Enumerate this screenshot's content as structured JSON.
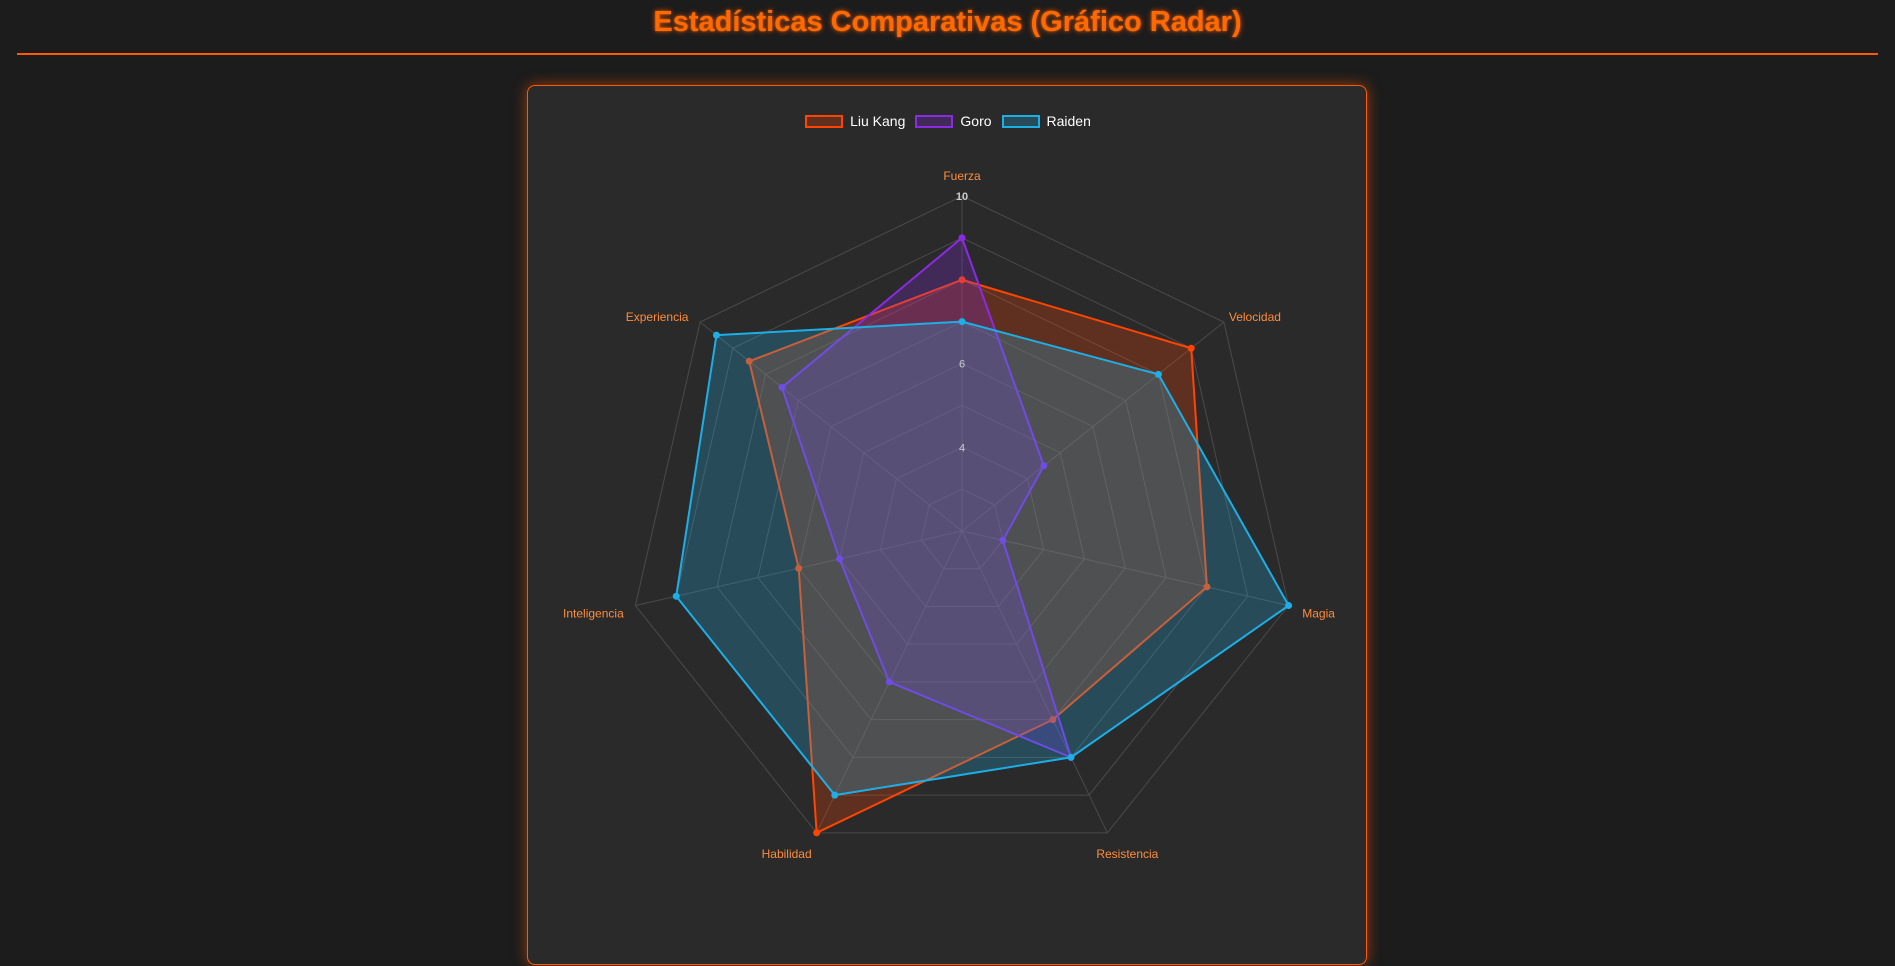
{
  "page": {
    "title": "Estadísticas Comparativas (Gráfico Radar)"
  },
  "colors": {
    "accent": "#ff5a00",
    "background": "#1c1c1c",
    "card": "#2a2a2a"
  },
  "chart_data": {
    "type": "radar",
    "axes": [
      "Fuerza",
      "Velocidad",
      "Magia",
      "Resistencia",
      "Habilidad",
      "Inteligencia",
      "Experiencia"
    ],
    "r_range": [
      2,
      10
    ],
    "ticks": [
      "4",
      "6",
      "10"
    ],
    "grid": true,
    "legend_position": "top",
    "series": [
      {
        "name": "Liu Kang",
        "values": [
          8.0,
          9.0,
          8.0,
          7.0,
          10.0,
          6.0,
          8.5
        ],
        "color": "#ff4500",
        "fill": "rgba(255, 69, 0, 0.25)"
      },
      {
        "name": "Goro",
        "values": [
          9.0,
          4.5,
          3.0,
          8.0,
          6.0,
          5.0,
          7.5
        ],
        "color": "#8a2be2",
        "fill": "rgba(138, 43, 226, 0.25)"
      },
      {
        "name": "Raiden",
        "values": [
          7.0,
          8.0,
          10.0,
          8.0,
          9.0,
          9.0,
          9.5
        ],
        "color": "#1eaee6",
        "fill": "rgba(30, 174, 230, 0.25)"
      }
    ]
  }
}
